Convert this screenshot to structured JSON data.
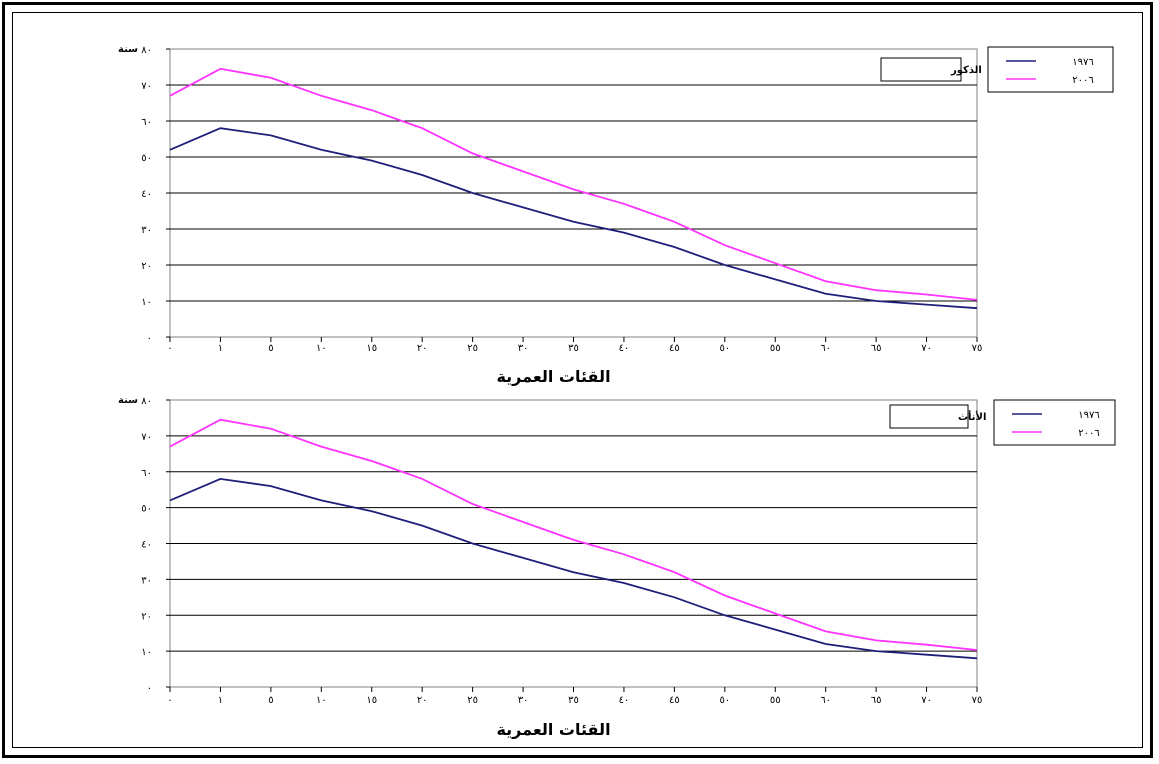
{
  "chart_data": [
    {
      "type": "line",
      "title": "الذكور",
      "ylabel": "سنة",
      "xlabel": "القئات العمرية",
      "ylim": [
        0,
        80
      ],
      "yticks": [
        "٠",
        "١٠",
        "٢٠",
        "٣٠",
        "٤٠",
        "٥٠",
        "٦٠",
        "٧٠",
        "٨٠"
      ],
      "categories": [
        "٠",
        "١",
        "٥",
        "١٠",
        "١٥",
        "٢٠",
        "٢٥",
        "٣٠",
        "٣٥",
        "٤٠",
        "٤٥",
        "٥٠",
        "٥٥",
        "٦٠",
        "٦٥",
        "٧٠",
        "٧٥"
      ],
      "grid": true,
      "legend_position": "top-right",
      "series": [
        {
          "name": "١٩٧٦",
          "color": "#1f1f7a",
          "values": [
            52,
            58,
            56,
            52,
            49,
            45,
            40,
            36,
            32,
            29,
            25,
            20,
            16,
            12,
            10,
            9,
            8
          ]
        },
        {
          "name": "٢٠٠٦",
          "color": "#ff33ff",
          "values": [
            67,
            74.5,
            72,
            67,
            63,
            58,
            51,
            46,
            41,
            37,
            32,
            25.5,
            20.5,
            15.5,
            13,
            11.8,
            10.3
          ]
        }
      ]
    },
    {
      "type": "line",
      "title": "الأنأث",
      "ylabel": "سنة",
      "xlabel": "القئات العمرية",
      "ylim": [
        0,
        80
      ],
      "yticks": [
        "٠",
        "١٠",
        "٢٠",
        "٣٠",
        "٤٠",
        "٥٠",
        "٦٠",
        "٧٠",
        "٨٠"
      ],
      "categories": [
        "٠",
        "١",
        "٥",
        "١٠",
        "١٥",
        "٢٠",
        "٢٥",
        "٣٠",
        "٣٥",
        "٤٠",
        "٤٥",
        "٥٠",
        "٥٥",
        "٦٠",
        "٦٥",
        "٧٠",
        "٧٥"
      ],
      "grid": true,
      "legend_position": "top-right",
      "series": [
        {
          "name": "١٩٧٦",
          "color": "#1f1f7a",
          "values": [
            52,
            58,
            56,
            52,
            49,
            45,
            40,
            36,
            32,
            29,
            25,
            20,
            16,
            12,
            10,
            9,
            8
          ]
        },
        {
          "name": "٢٠٠٦",
          "color": "#ff33ff",
          "values": [
            67,
            74.5,
            72,
            67,
            63,
            58,
            51,
            46,
            41,
            37,
            32,
            25.5,
            20.5,
            15.5,
            13,
            11.8,
            10.3
          ]
        }
      ]
    }
  ]
}
